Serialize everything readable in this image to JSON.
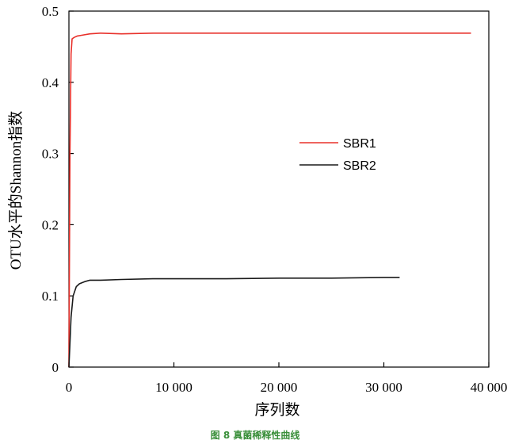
{
  "chart_data": {
    "type": "line",
    "caption": "图 8 真菌稀释性曲线",
    "xlabel": "序列数",
    "ylabel": "OTU水平的Shannon指数",
    "xlim": [
      0,
      40000
    ],
    "ylim": [
      0,
      0.5
    ],
    "xticks": [
      0,
      10000,
      20000,
      30000,
      40000
    ],
    "xtick_labels": [
      "0",
      "10 000",
      "20 000",
      "30 000",
      "40 000"
    ],
    "yticks": [
      0,
      0.1,
      0.2,
      0.3,
      0.4,
      0.5
    ],
    "ytick_labels": [
      "0",
      "0.1",
      "0.2",
      "0.3",
      "0.4",
      "0.5"
    ],
    "grid": false,
    "legend_position": "center-right",
    "series": [
      {
        "name": "SBR1",
        "color": "#e8302a",
        "x": [
          0,
          100,
          200,
          300,
          500,
          800,
          1200,
          2000,
          3000,
          5000,
          8000,
          10000,
          15000,
          20000,
          25000,
          30000,
          35000,
          38300
        ],
        "y": [
          0,
          0.3,
          0.44,
          0.461,
          0.463,
          0.465,
          0.466,
          0.468,
          0.469,
          0.468,
          0.469,
          0.469,
          0.469,
          0.469,
          0.469,
          0.469,
          0.469,
          0.469
        ]
      },
      {
        "name": "SBR2",
        "color": "#1a1a1a",
        "x": [
          0,
          200,
          400,
          700,
          1000,
          1500,
          2000,
          3000,
          5000,
          8000,
          10000,
          15000,
          20000,
          25000,
          30000,
          31500
        ],
        "y": [
          0,
          0.07,
          0.1,
          0.113,
          0.117,
          0.12,
          0.122,
          0.122,
          0.123,
          0.124,
          0.124,
          0.124,
          0.125,
          0.125,
          0.126,
          0.126
        ]
      }
    ]
  }
}
